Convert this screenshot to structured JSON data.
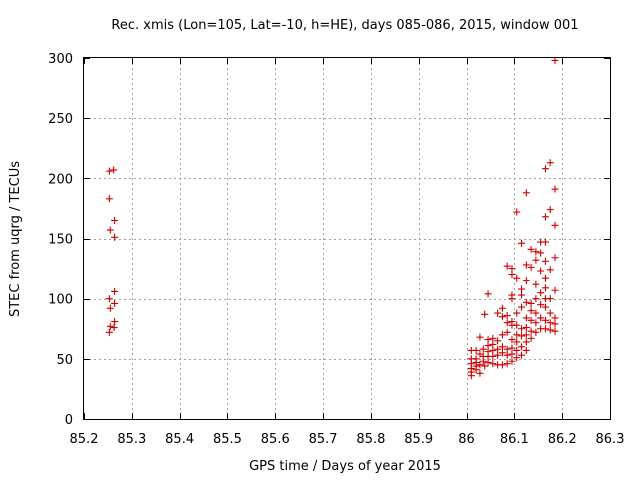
{
  "colors": {
    "series": "#cc0000",
    "grid": "#a0a0a0",
    "axis": "#000000"
  },
  "chart_data": {
    "type": "scatter",
    "title": "Rec. xmis (Lon=105, Lat=-10, h=HE), days 085-086, 2015, window 001",
    "xlabel": "GPS time / Days of year 2015",
    "ylabel": "STEC from uqrg / TECUs",
    "xlim": [
      85.2,
      86.3
    ],
    "ylim": [
      0,
      300
    ],
    "xticks": [
      85.2,
      85.3,
      85.4,
      85.5,
      85.6,
      85.7,
      85.8,
      85.9,
      86,
      86.1,
      86.2,
      86.3
    ],
    "xtick_labels": [
      "85.2",
      "85.3",
      "85.4",
      "85.5",
      "85.6",
      "85.7",
      "85.8",
      "85.9",
      "86",
      "86.1",
      "86.2",
      "86.3"
    ],
    "yticks": [
      0,
      50,
      100,
      150,
      200,
      250,
      300
    ],
    "ytick_labels": [
      "0",
      "50",
      "100",
      "150",
      "200",
      "250",
      "300"
    ],
    "grid": true,
    "marker": "+",
    "series": [
      {
        "name": "STEC",
        "points": [
          [
            85.253,
            206
          ],
          [
            85.262,
            207
          ],
          [
            85.253,
            183
          ],
          [
            85.264,
            165
          ],
          [
            85.255,
            157
          ],
          [
            85.264,
            151
          ],
          [
            85.264,
            106
          ],
          [
            85.253,
            100
          ],
          [
            85.264,
            96
          ],
          [
            85.255,
            92
          ],
          [
            85.264,
            81
          ],
          [
            85.255,
            77
          ],
          [
            85.263,
            76
          ],
          [
            85.253,
            72
          ],
          [
            86.01,
            57
          ],
          [
            86.01,
            50
          ],
          [
            86.01,
            46
          ],
          [
            86.01,
            42
          ],
          [
            86.01,
            39
          ],
          [
            86.01,
            36
          ],
          [
            86.02,
            57
          ],
          [
            86.02,
            50
          ],
          [
            86.02,
            47
          ],
          [
            86.02,
            44
          ],
          [
            86.02,
            41
          ],
          [
            86.028,
            68
          ],
          [
            86.028,
            54
          ],
          [
            86.028,
            45
          ],
          [
            86.028,
            38
          ],
          [
            86.035,
            58
          ],
          [
            86.035,
            52
          ],
          [
            86.035,
            48
          ],
          [
            86.038,
            44
          ],
          [
            86.038,
            87
          ],
          [
            86.045,
            66
          ],
          [
            86.045,
            61
          ],
          [
            86.045,
            56
          ],
          [
            86.045,
            52
          ],
          [
            86.045,
            47
          ],
          [
            86.045,
            104
          ],
          [
            86.055,
            67
          ],
          [
            86.055,
            62
          ],
          [
            86.055,
            57
          ],
          [
            86.055,
            52
          ],
          [
            86.055,
            46
          ],
          [
            86.065,
            88
          ],
          [
            86.065,
            65
          ],
          [
            86.065,
            58
          ],
          [
            86.065,
            53
          ],
          [
            86.065,
            45
          ],
          [
            86.075,
            92
          ],
          [
            86.075,
            85
          ],
          [
            86.075,
            70
          ],
          [
            86.075,
            60
          ],
          [
            86.075,
            55
          ],
          [
            86.075,
            45
          ],
          [
            86.085,
            127
          ],
          [
            86.085,
            86
          ],
          [
            86.085,
            80
          ],
          [
            86.085,
            72
          ],
          [
            86.085,
            58
          ],
          [
            86.085,
            53
          ],
          [
            86.085,
            46
          ],
          [
            86.095,
            125
          ],
          [
            86.095,
            120
          ],
          [
            86.095,
            103
          ],
          [
            86.095,
            100
          ],
          [
            86.095,
            81
          ],
          [
            86.095,
            78
          ],
          [
            86.095,
            66
          ],
          [
            86.095,
            59
          ],
          [
            86.095,
            54
          ],
          [
            86.095,
            48
          ],
          [
            86.105,
            172
          ],
          [
            86.105,
            117
          ],
          [
            86.105,
            88
          ],
          [
            86.105,
            78
          ],
          [
            86.105,
            70
          ],
          [
            86.105,
            64
          ],
          [
            86.105,
            57
          ],
          [
            86.105,
            51
          ],
          [
            86.115,
            146
          ],
          [
            86.115,
            108
          ],
          [
            86.115,
            103
          ],
          [
            86.115,
            93
          ],
          [
            86.115,
            75
          ],
          [
            86.115,
            69
          ],
          [
            86.115,
            60
          ],
          [
            86.115,
            53
          ],
          [
            86.125,
            188
          ],
          [
            86.125,
            128
          ],
          [
            86.125,
            115
          ],
          [
            86.125,
            97
          ],
          [
            86.125,
            84
          ],
          [
            86.125,
            76
          ],
          [
            86.125,
            70
          ],
          [
            86.125,
            64
          ],
          [
            86.125,
            57
          ],
          [
            86.135,
            141
          ],
          [
            86.135,
            126
          ],
          [
            86.135,
            96
          ],
          [
            86.135,
            90
          ],
          [
            86.135,
            82
          ],
          [
            86.135,
            73
          ],
          [
            86.135,
            67
          ],
          [
            86.145,
            139
          ],
          [
            86.145,
            132
          ],
          [
            86.145,
            112
          ],
          [
            86.145,
            100
          ],
          [
            86.145,
            88
          ],
          [
            86.145,
            80
          ],
          [
            86.145,
            72
          ],
          [
            86.155,
            147
          ],
          [
            86.155,
            138
          ],
          [
            86.155,
            123
          ],
          [
            86.155,
            105
          ],
          [
            86.155,
            95
          ],
          [
            86.155,
            84
          ],
          [
            86.155,
            75
          ],
          [
            86.165,
            208
          ],
          [
            86.165,
            168
          ],
          [
            86.165,
            147
          ],
          [
            86.165,
            131
          ],
          [
            86.165,
            117
          ],
          [
            86.165,
            109
          ],
          [
            86.165,
            100
          ],
          [
            86.165,
            93
          ],
          [
            86.165,
            82
          ],
          [
            86.165,
            75
          ],
          [
            86.175,
            213
          ],
          [
            86.175,
            174
          ],
          [
            86.175,
            124
          ],
          [
            86.175,
            100
          ],
          [
            86.175,
            88
          ],
          [
            86.175,
            80
          ],
          [
            86.175,
            74
          ],
          [
            86.185,
            298
          ],
          [
            86.185,
            191
          ],
          [
            86.185,
            161
          ],
          [
            86.185,
            134
          ],
          [
            86.185,
            107
          ],
          [
            86.185,
            84
          ],
          [
            86.185,
            79
          ],
          [
            86.185,
            73
          ]
        ]
      }
    ]
  }
}
